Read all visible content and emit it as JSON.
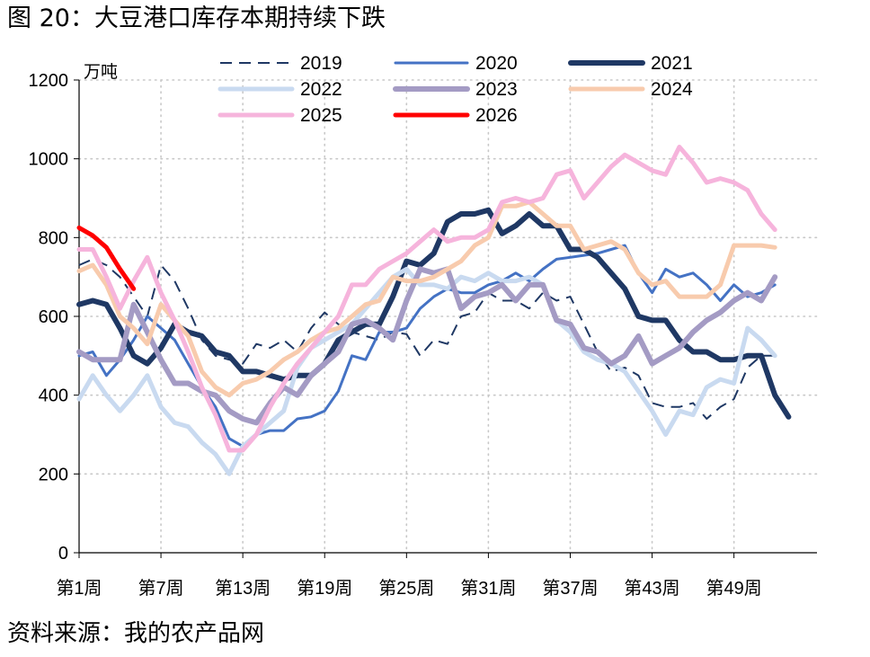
{
  "figure_title": "图 20：大豆港口库存本期持续下跌",
  "source": "资料来源：我的农产品网",
  "chart_data": {
    "type": "line",
    "unit_label": "万吨",
    "ylim": [
      0,
      1200
    ],
    "y_ticks": [
      0,
      200,
      400,
      600,
      800,
      1000,
      1200
    ],
    "y_tick_labels": [
      "0",
      "200",
      "400",
      "600",
      "800",
      "1000",
      "1200"
    ],
    "xlim": [
      1,
      53
    ],
    "x_ticks": [
      1,
      7,
      13,
      19,
      25,
      31,
      37,
      43,
      49
    ],
    "x_tick_labels": [
      "第1周",
      "第7周",
      "第13周",
      "第19周",
      "第25周",
      "第31周",
      "第37周",
      "第43周",
      "第49周"
    ],
    "grid": "dotted",
    "legend_position": "top",
    "series": [
      {
        "name": "2019",
        "color": "#1f3864",
        "style": "dashed",
        "width": 2,
        "x": [
          1,
          2,
          3,
          4,
          5,
          6,
          7,
          8,
          9,
          10,
          11,
          12,
          13,
          14,
          15,
          16,
          17,
          18,
          19,
          20,
          21,
          22,
          23,
          24,
          25,
          26,
          27,
          28,
          29,
          30,
          31,
          32,
          33,
          34,
          35,
          36,
          37,
          38,
          39,
          40,
          41,
          42,
          43,
          44,
          45,
          46,
          47,
          48,
          49,
          50,
          51,
          52
        ],
        "values": [
          730,
          745,
          730,
          700,
          650,
          600,
          730,
          690,
          620,
          540,
          500,
          490,
          480,
          530,
          520,
          540,
          510,
          570,
          610,
          580,
          560,
          550,
          540,
          560,
          555,
          500,
          540,
          530,
          600,
          610,
          660,
          640,
          640,
          620,
          660,
          640,
          650,
          580,
          510,
          460,
          470,
          450,
          380,
          370,
          370,
          380,
          340,
          370,
          390,
          470,
          500,
          500
        ]
      },
      {
        "name": "2020",
        "color": "#4472c4",
        "style": "solid",
        "width": 3,
        "x": [
          1,
          2,
          3,
          4,
          5,
          6,
          7,
          8,
          9,
          10,
          11,
          12,
          13,
          14,
          15,
          16,
          17,
          18,
          19,
          20,
          21,
          22,
          23,
          24,
          25,
          26,
          27,
          28,
          29,
          30,
          31,
          32,
          33,
          34,
          35,
          36,
          37,
          38,
          39,
          40,
          41,
          42,
          43,
          44,
          45,
          46,
          47,
          48,
          49,
          50,
          51,
          52
        ],
        "values": [
          500,
          510,
          450,
          490,
          540,
          600,
          570,
          540,
          480,
          420,
          370,
          290,
          270,
          300,
          310,
          310,
          340,
          345,
          360,
          410,
          500,
          490,
          560,
          560,
          570,
          620,
          650,
          670,
          660,
          660,
          680,
          690,
          710,
          690,
          720,
          745,
          750,
          755,
          760,
          770,
          780,
          710,
          660,
          720,
          700,
          710,
          680,
          640,
          680,
          650,
          660,
          680
        ]
      },
      {
        "name": "2021",
        "color": "#1f3864",
        "style": "solid",
        "width": 6,
        "x": [
          1,
          2,
          3,
          4,
          5,
          6,
          7,
          8,
          9,
          10,
          11,
          12,
          13,
          14,
          15,
          16,
          17,
          18,
          19,
          20,
          21,
          22,
          23,
          24,
          25,
          26,
          27,
          28,
          29,
          30,
          31,
          32,
          33,
          34,
          35,
          36,
          37,
          38,
          39,
          40,
          41,
          42,
          43,
          44,
          45,
          46,
          47,
          48,
          49,
          50,
          51,
          52,
          53
        ],
        "values": [
          630,
          640,
          630,
          570,
          500,
          480,
          520,
          580,
          560,
          550,
          510,
          500,
          460,
          460,
          450,
          440,
          450,
          450,
          480,
          540,
          560,
          580,
          580,
          650,
          740,
          730,
          760,
          840,
          860,
          860,
          870,
          810,
          830,
          860,
          830,
          830,
          770,
          770,
          750,
          710,
          670,
          600,
          590,
          590,
          540,
          510,
          510,
          490,
          490,
          500,
          500,
          400,
          345
        ]
      },
      {
        "name": "2022",
        "color": "#c9daf0",
        "style": "solid",
        "width": 5,
        "x": [
          1,
          2,
          3,
          4,
          5,
          6,
          7,
          8,
          9,
          10,
          11,
          12,
          13,
          14,
          15,
          16,
          17,
          18,
          19,
          20,
          21,
          22,
          23,
          24,
          25,
          26,
          27,
          28,
          29,
          30,
          31,
          32,
          33,
          34,
          35,
          36,
          37,
          38,
          39,
          40,
          41,
          42,
          43,
          44,
          45,
          46,
          47,
          48,
          49,
          50,
          51,
          52
        ],
        "values": [
          390,
          450,
          400,
          360,
          400,
          450,
          370,
          330,
          320,
          280,
          250,
          200,
          270,
          300,
          330,
          360,
          470,
          520,
          540,
          560,
          580,
          620,
          660,
          700,
          720,
          680,
          680,
          670,
          700,
          690,
          710,
          690,
          690,
          700,
          680,
          590,
          560,
          510,
          490,
          480,
          460,
          410,
          360,
          300,
          360,
          350,
          420,
          440,
          430,
          570,
          540,
          500
        ]
      },
      {
        "name": "2023",
        "color": "#a49bc4",
        "style": "solid",
        "width": 6,
        "x": [
          1,
          2,
          3,
          4,
          5,
          6,
          7,
          8,
          9,
          10,
          11,
          12,
          13,
          14,
          15,
          16,
          17,
          18,
          19,
          20,
          21,
          22,
          23,
          24,
          25,
          26,
          27,
          28,
          29,
          30,
          31,
          32,
          33,
          34,
          35,
          36,
          37,
          38,
          39,
          40,
          41,
          42,
          43,
          44,
          45,
          46,
          47,
          48,
          49,
          50,
          51,
          52
        ],
        "values": [
          510,
          490,
          490,
          490,
          630,
          560,
          490,
          430,
          430,
          410,
          400,
          360,
          340,
          330,
          380,
          420,
          400,
          450,
          480,
          510,
          580,
          590,
          570,
          540,
          640,
          720,
          710,
          720,
          620,
          650,
          660,
          680,
          640,
          680,
          680,
          590,
          580,
          520,
          510,
          480,
          500,
          550,
          480,
          500,
          520,
          560,
          590,
          610,
          640,
          660,
          640,
          700
        ]
      },
      {
        "name": "2024",
        "color": "#f8cbad",
        "style": "solid",
        "width": 5,
        "x": [
          1,
          2,
          3,
          4,
          5,
          6,
          7,
          8,
          9,
          10,
          11,
          12,
          13,
          14,
          15,
          16,
          17,
          18,
          19,
          20,
          21,
          22,
          23,
          24,
          25,
          26,
          27,
          28,
          29,
          30,
          31,
          32,
          33,
          34,
          35,
          36,
          37,
          38,
          39,
          40,
          41,
          42,
          43,
          44,
          45,
          46,
          47,
          48,
          49,
          50,
          51,
          52
        ],
        "values": [
          715,
          730,
          680,
          600,
          570,
          530,
          630,
          590,
          550,
          460,
          420,
          400,
          430,
          440,
          460,
          490,
          510,
          540,
          560,
          570,
          600,
          630,
          640,
          700,
          690,
          690,
          700,
          720,
          740,
          780,
          800,
          880,
          880,
          890,
          860,
          830,
          830,
          770,
          780,
          790,
          770,
          710,
          680,
          690,
          650,
          650,
          650,
          680,
          780,
          780,
          780,
          775
        ]
      },
      {
        "name": "2025",
        "color": "#f6b4dc",
        "style": "solid",
        "width": 5,
        "x": [
          1,
          2,
          3,
          4,
          5,
          6,
          7,
          8,
          9,
          10,
          11,
          12,
          13,
          14,
          15,
          16,
          17,
          18,
          19,
          20,
          21,
          22,
          23,
          24,
          25,
          26,
          27,
          28,
          29,
          30,
          31,
          32,
          33,
          34,
          35,
          36,
          37,
          38,
          39,
          40,
          41,
          42,
          43,
          44,
          45,
          46,
          47,
          48,
          49,
          50,
          51,
          52
        ],
        "values": [
          770,
          770,
          700,
          620,
          690,
          750,
          660,
          590,
          510,
          420,
          350,
          260,
          260,
          300,
          370,
          430,
          480,
          520,
          560,
          600,
          680,
          680,
          720,
          740,
          760,
          790,
          820,
          790,
          800,
          800,
          820,
          890,
          900,
          890,
          900,
          960,
          970,
          900,
          940,
          980,
          1010,
          990,
          970,
          960,
          1030,
          990,
          940,
          950,
          940,
          920,
          860,
          820
        ]
      },
      {
        "name": "2026",
        "color": "#ff0000",
        "style": "solid",
        "width": 5,
        "x": [
          1,
          2,
          3,
          4,
          5
        ],
        "values": [
          825,
          805,
          775,
          720,
          670
        ]
      }
    ]
  }
}
